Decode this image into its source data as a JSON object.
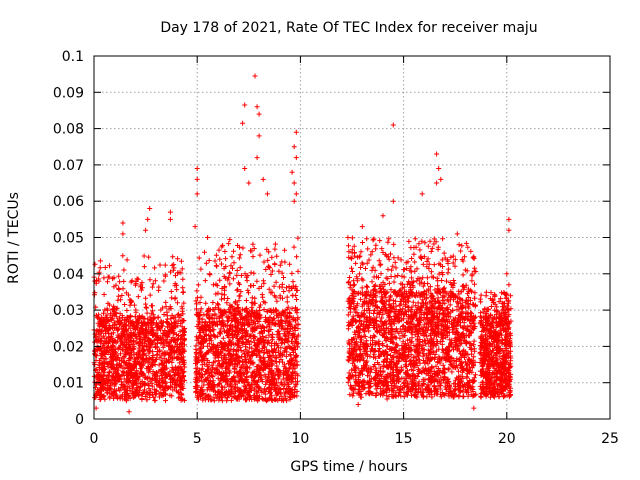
{
  "chart_data": {
    "type": "scatter",
    "title": "Day 178 of 2021, Rate Of TEC Index for receiver maju",
    "xlabel": "GPS time / hours",
    "ylabel": "ROTI / TECUs",
    "xlim": [
      0,
      25
    ],
    "ylim": [
      0,
      0.1
    ],
    "x_ticks": [
      0,
      5,
      10,
      15,
      20,
      25
    ],
    "x_tick_labels": [
      "0",
      "5",
      "10",
      "15",
      "20",
      "25"
    ],
    "y_ticks": [
      0,
      0.01,
      0.02,
      0.03,
      0.04,
      0.05,
      0.06,
      0.07,
      0.08,
      0.09,
      0.1
    ],
    "y_tick_labels": [
      "0",
      "0.01",
      "0.02",
      "0.03",
      "0.04",
      "0.05",
      "0.06",
      "0.07",
      "0.08",
      "0.09",
      "0.1"
    ],
    "grid": true,
    "marker": "+",
    "marker_color": "#ff0000",
    "segments": [
      {
        "x_start": 0.0,
        "x_end": 4.4,
        "typical_range": [
          0.005,
          0.028
        ],
        "max_typical": 0.045,
        "density": 1500
      },
      {
        "x_start": 4.9,
        "x_end": 9.9,
        "typical_range": [
          0.005,
          0.03
        ],
        "max_typical": 0.05,
        "density": 1700
      },
      {
        "x_start": 12.3,
        "x_end": 18.5,
        "typical_range": [
          0.006,
          0.035
        ],
        "max_typical": 0.05,
        "density": 2200
      },
      {
        "x_start": 18.7,
        "x_end": 20.2,
        "typical_range": [
          0.006,
          0.028
        ],
        "max_typical": 0.035,
        "density": 700
      }
    ],
    "outliers": [
      [
        0.1,
        0.003
      ],
      [
        1.7,
        0.002
      ],
      [
        7.8,
        0.0945
      ],
      [
        7.3,
        0.0865
      ],
      [
        7.2,
        0.0815
      ],
      [
        7.9,
        0.086
      ],
      [
        8.0,
        0.084
      ],
      [
        8.0,
        0.078
      ],
      [
        7.9,
        0.072
      ],
      [
        8.2,
        0.066
      ],
      [
        7.3,
        0.069
      ],
      [
        7.5,
        0.065
      ],
      [
        8.4,
        0.062
      ],
      [
        9.8,
        0.079
      ],
      [
        9.7,
        0.075
      ],
      [
        9.8,
        0.072
      ],
      [
        9.6,
        0.068
      ],
      [
        9.7,
        0.065
      ],
      [
        9.8,
        0.062
      ],
      [
        9.7,
        0.06
      ],
      [
        5.0,
        0.069
      ],
      [
        5.0,
        0.066
      ],
      [
        5.0,
        0.062
      ],
      [
        4.9,
        0.053
      ],
      [
        2.7,
        0.058
      ],
      [
        2.6,
        0.055
      ],
      [
        2.5,
        0.052
      ],
      [
        3.7,
        0.057
      ],
      [
        3.7,
        0.055
      ],
      [
        1.4,
        0.054
      ],
      [
        1.4,
        0.051
      ],
      [
        14.5,
        0.081
      ],
      [
        16.6,
        0.073
      ],
      [
        16.7,
        0.069
      ],
      [
        16.8,
        0.066
      ],
      [
        16.6,
        0.065
      ],
      [
        15.9,
        0.062
      ],
      [
        14.5,
        0.06
      ],
      [
        13.0,
        0.053
      ],
      [
        12.3,
        0.05
      ],
      [
        14.0,
        0.056
      ],
      [
        17.6,
        0.051
      ],
      [
        20.1,
        0.055
      ],
      [
        20.1,
        0.052
      ],
      [
        20.0,
        0.04
      ],
      [
        20.1,
        0.037
      ],
      [
        8.0,
        0.0055
      ],
      [
        12.8,
        0.004
      ],
      [
        14.2,
        0.0055
      ],
      [
        18.4,
        0.003
      ]
    ]
  }
}
